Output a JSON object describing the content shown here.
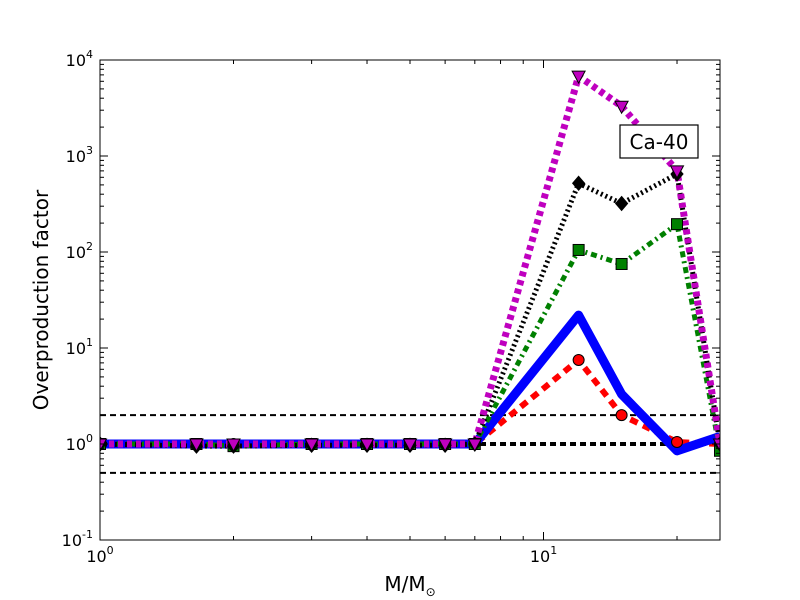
{
  "chart_data": {
    "type": "line",
    "x_scale": "log",
    "y_scale": "log",
    "xlabel": "M/M",
    "xlabel_subscript": "⊙",
    "ylabel": "Overproduction factor",
    "xlim": [
      1,
      25
    ],
    "ylim": [
      0.1,
      10000
    ],
    "x_ticks": [
      {
        "value": 1,
        "base": "10",
        "exp": "0"
      },
      {
        "value": 10,
        "base": "10",
        "exp": "1"
      }
    ],
    "y_ticks": [
      {
        "value": 0.1,
        "base": "10",
        "exp": "-1"
      },
      {
        "value": 1,
        "base": "10",
        "exp": "0"
      },
      {
        "value": 10,
        "base": "10",
        "exp": "1"
      },
      {
        "value": 100,
        "base": "10",
        "exp": "2"
      },
      {
        "value": 1000,
        "base": "10",
        "exp": "3"
      },
      {
        "value": 10000,
        "base": "10",
        "exp": "4"
      }
    ],
    "annotation": "Ca-40",
    "reference_lines": [
      {
        "y": 2,
        "style": "dashed",
        "color": "#000000",
        "width": 2
      },
      {
        "y": 1,
        "style": "dashed",
        "color": "#000000",
        "width": 4
      },
      {
        "y": 0.5,
        "style": "dashed",
        "color": "#000000",
        "width": 2
      }
    ],
    "series": [
      {
        "color": "#ff0000",
        "dash": "8,6",
        "width": 6,
        "marker": "circle",
        "x": [
          1,
          1.65,
          2,
          3,
          4,
          5,
          6,
          7,
          12,
          15,
          20,
          25
        ],
        "y": [
          1,
          1,
          1,
          1,
          1,
          1,
          1,
          1,
          7.5,
          2.0,
          1.05,
          1.0
        ]
      },
      {
        "color": "#0000ff",
        "dash": "",
        "width": 9,
        "marker": "none",
        "x": [
          1,
          1.65,
          2,
          3,
          4,
          5,
          6,
          7,
          12,
          15,
          20,
          25
        ],
        "y": [
          1,
          1,
          1,
          1,
          1,
          1,
          1,
          1,
          22,
          3.3,
          0.85,
          1.2
        ]
      },
      {
        "color": "#008000",
        "dash": "6,4,2,4",
        "width": 5,
        "marker": "square",
        "x": [
          1,
          1.65,
          2,
          3,
          4,
          5,
          6,
          7,
          12,
          15,
          20,
          25
        ],
        "y": [
          1,
          1,
          0.95,
          1,
          1,
          1,
          1,
          1,
          105,
          75,
          195,
          0.85
        ]
      },
      {
        "color": "#000000",
        "dash": "2,3",
        "width": 5,
        "marker": "diamond",
        "x": [
          1,
          1.65,
          2,
          3,
          4,
          5,
          6,
          7,
          12,
          15,
          20,
          25
        ],
        "y": [
          1,
          0.95,
          0.95,
          0.97,
          0.97,
          0.97,
          0.97,
          1,
          520,
          320,
          650,
          1.0
        ]
      },
      {
        "color": "#bf00bf",
        "dash": "5,4",
        "width": 7,
        "marker": "triangle-down",
        "x": [
          1,
          1.65,
          2,
          3,
          4,
          5,
          6,
          7,
          12,
          15,
          20,
          25
        ],
        "y": [
          1,
          1,
          1,
          1,
          1,
          1,
          1,
          1,
          6800,
          3300,
          700,
          1.0
        ]
      }
    ]
  }
}
